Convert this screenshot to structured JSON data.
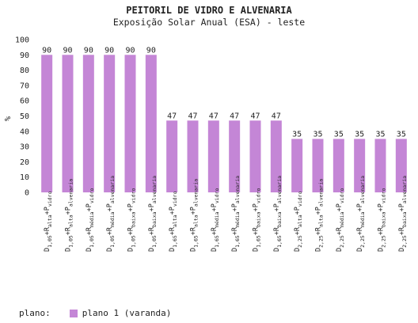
{
  "chart_data": {
    "type": "bar",
    "title": "PEITORIL DE VIDRO E ALVENARIA",
    "subtitle": "Exposição Solar Anual (ESA) - leste",
    "ylabel": "%",
    "ylim": [
      0,
      100
    ],
    "yticks": [
      "0",
      "10",
      "20",
      "30",
      "40",
      "50",
      "60",
      "70",
      "80",
      "90",
      "100"
    ],
    "bar_color": "#c486d6",
    "categories": [
      {
        "d": "1,05",
        "r": "alta",
        "p": "vidro"
      },
      {
        "d": "1,05",
        "r": "alta",
        "p": "alvenaria"
      },
      {
        "d": "1,05",
        "r": "média",
        "p": "vidro"
      },
      {
        "d": "1,05",
        "r": "média",
        "p": "alvenaria"
      },
      {
        "d": "1,05",
        "r": "baixa",
        "p": "vidro"
      },
      {
        "d": "1,05",
        "r": "baixa",
        "p": "alvenaria"
      },
      {
        "d": "1,65",
        "r": "alta",
        "p": "vidro"
      },
      {
        "d": "1,65",
        "r": "alta",
        "p": "alvenaria"
      },
      {
        "d": "1,65",
        "r": "média",
        "p": "vidro"
      },
      {
        "d": "1,65",
        "r": "média",
        "p": "alvenaria"
      },
      {
        "d": "1,65",
        "r": "baixa",
        "p": "vidro"
      },
      {
        "d": "1,65",
        "r": "baixa",
        "p": "alvenaria"
      },
      {
        "d": "2,25",
        "r": "alta",
        "p": "vidro"
      },
      {
        "d": "2,25",
        "r": "alta",
        "p": "alvenaria"
      },
      {
        "d": "2,25",
        "r": "média",
        "p": "vidro"
      },
      {
        "d": "2,25",
        "r": "média",
        "p": "alvenaria"
      },
      {
        "d": "2,25",
        "r": "baixa",
        "p": "vidro"
      },
      {
        "d": "2,25",
        "r": "baixa",
        "p": "alvenaria"
      }
    ],
    "series": [
      {
        "name": "plano 1 (varanda)",
        "values": [
          90,
          90,
          90,
          90,
          90,
          90,
          47,
          47,
          47,
          47,
          47,
          47,
          35,
          35,
          35,
          35,
          35,
          35
        ]
      }
    ],
    "legend_title": "plano:",
    "legend_placement": "bottom-left",
    "grid": false
  }
}
